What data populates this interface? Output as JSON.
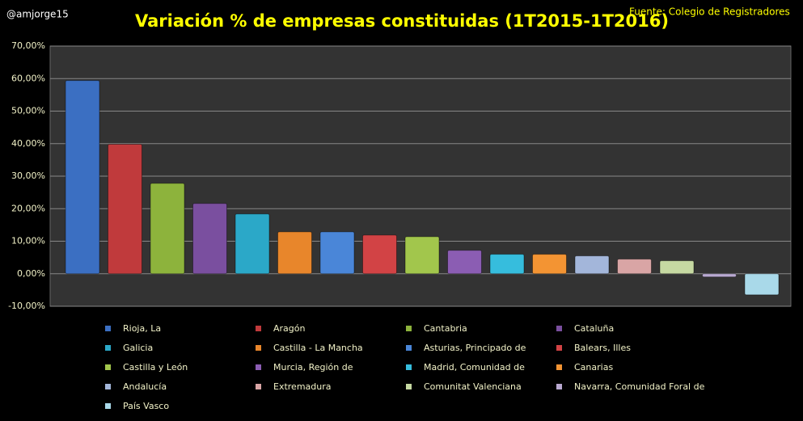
{
  "handle": "@amjorge15",
  "source": "Fuente: Colegio de Registradores",
  "chart_data": {
    "type": "bar",
    "title": "Variación % de empresas constituidas (1T2015-1T2016)",
    "ylim": [
      -10,
      70
    ],
    "yticks": [
      {
        "value": -10,
        "label": "-10,00%"
      },
      {
        "value": 0,
        "label": "0,00%"
      },
      {
        "value": 10,
        "label": "10,00%"
      },
      {
        "value": 20,
        "label": "20,00%"
      },
      {
        "value": 30,
        "label": "30,00%"
      },
      {
        "value": 40,
        "label": "40,00%"
      },
      {
        "value": 50,
        "label": "50,00%"
      },
      {
        "value": 60,
        "label": "60,00%"
      },
      {
        "value": 70,
        "label": "70,00%"
      }
    ],
    "grid": true,
    "series": [
      {
        "name": "Rioja, La",
        "color": "#3b6fc2",
        "values": [
          59.4
        ]
      },
      {
        "name": "Aragón",
        "color": "#c03a3c",
        "values": [
          39.8
        ]
      },
      {
        "name": "Cantabria",
        "color": "#8db33c",
        "values": [
          27.8
        ]
      },
      {
        "name": "Cataluña",
        "color": "#7a4f9f",
        "values": [
          21.6
        ]
      },
      {
        "name": "Galicia",
        "color": "#2ba8c8",
        "values": [
          18.4
        ]
      },
      {
        "name": "Castilla - La Mancha",
        "color": "#e8862b",
        "values": [
          12.9
        ]
      },
      {
        "name": "Asturias, Principado de",
        "color": "#4a86d8",
        "values": [
          12.9
        ]
      },
      {
        "name": "Balears, Illes",
        "color": "#d24345",
        "values": [
          11.9
        ]
      },
      {
        "name": "Castilla y León",
        "color": "#a2c64c",
        "values": [
          11.4
        ]
      },
      {
        "name": "Murcia, Región de",
        "color": "#8b5db3",
        "values": [
          7.2
        ]
      },
      {
        "name": "Madrid, Comunidad de",
        "color": "#36bddd",
        "values": [
          6.0
        ]
      },
      {
        "name": "Canarias",
        "color": "#f39433",
        "values": [
          6.0
        ]
      },
      {
        "name": "Andalucía",
        "color": "#a3b6da",
        "values": [
          5.5
        ]
      },
      {
        "name": "Extremadura",
        "color": "#d9a5a5",
        "values": [
          4.5
        ]
      },
      {
        "name": "Comunitat Valenciana",
        "color": "#c6d9a2",
        "values": [
          4.0
        ]
      },
      {
        "name": "Navarra, Comunidad Foral de",
        "color": "#b9a9d1",
        "values": [
          -1.0
        ]
      },
      {
        "name": "País Vasco",
        "color": "#a9d9e9",
        "values": [
          -6.5
        ]
      }
    ]
  }
}
